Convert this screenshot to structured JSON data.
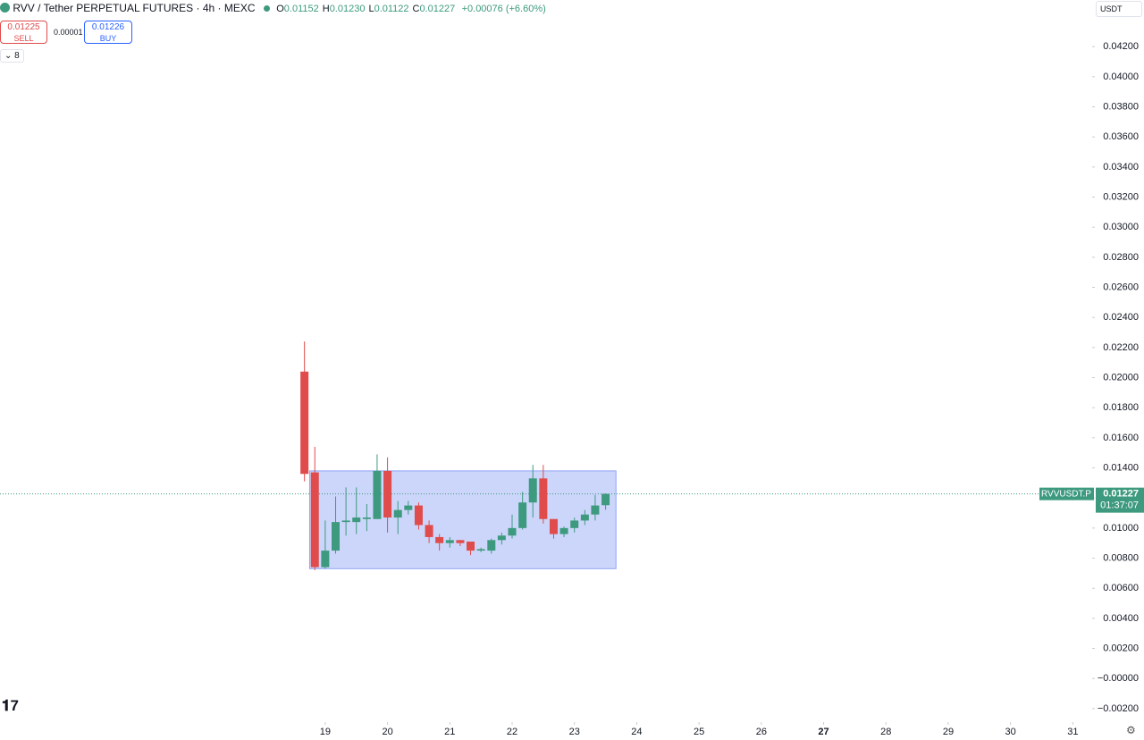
{
  "header": {
    "title": "RVV / Tether PERPETUAL FUTURES · 4h · MEXC",
    "ohlc": [
      {
        "label": "O",
        "value": "0.01152"
      },
      {
        "label": "H",
        "value": "0.01230"
      },
      {
        "label": "L",
        "value": "0.01122"
      },
      {
        "label": "C",
        "value": "0.01227"
      }
    ],
    "change": "+0.00076 (+6.60%)",
    "sell": {
      "price": "0.01225",
      "label": "SELL"
    },
    "spread": "0.00001",
    "buy": {
      "price": "0.01226",
      "label": "BUY"
    },
    "indicators": "8",
    "currency": "USDT"
  },
  "chart_data": {
    "type": "candlestick",
    "x": [
      18.667,
      18.833,
      19,
      19.167,
      19.333,
      19.5,
      19.667,
      19.833,
      20,
      20.167,
      20.333,
      20.5,
      20.667,
      20.833,
      21,
      21.167,
      21.333,
      21.5,
      21.667,
      21.833,
      22,
      22.167,
      22.333,
      22.5,
      22.667,
      22.833,
      23,
      23.167,
      23.333,
      23.5
    ],
    "open": [
      0.0204,
      0.0137,
      0.0074,
      0.0085,
      0.0104,
      0.0104,
      0.0106,
      0.0106,
      0.0138,
      0.0107,
      0.0112,
      0.0115,
      0.0102,
      0.0094,
      0.009,
      0.0092,
      0.0091,
      0.0085,
      0.0085,
      0.0092,
      0.0095,
      0.01,
      0.0117,
      0.0133,
      0.0106,
      0.0096,
      0.01,
      0.0105,
      0.0109,
      0.01152
    ],
    "high": [
      0.0224,
      0.0154,
      0.0105,
      0.0121,
      0.0127,
      0.0127,
      0.0116,
      0.0149,
      0.0147,
      0.0118,
      0.0118,
      0.0117,
      0.0105,
      0.0096,
      0.0094,
      0.0092,
      0.0091,
      0.0087,
      0.0093,
      0.0097,
      0.0109,
      0.0124,
      0.0142,
      0.0142,
      0.0106,
      0.0101,
      0.0107,
      0.0112,
      0.0122,
      0.0123
    ],
    "low": [
      0.0131,
      0.0072,
      0.0073,
      0.0083,
      0.0095,
      0.0096,
      0.0098,
      0.0106,
      0.0097,
      0.0096,
      0.0109,
      0.0099,
      0.009,
      0.0085,
      0.0087,
      0.0088,
      0.0082,
      0.0084,
      0.0083,
      0.0089,
      0.0093,
      0.0099,
      0.0107,
      0.0103,
      0.0093,
      0.0094,
      0.0097,
      0.0102,
      0.0105,
      0.01122
    ],
    "close": [
      0.0136,
      0.0074,
      0.0085,
      0.0104,
      0.0105,
      0.0107,
      0.0107,
      0.0138,
      0.0107,
      0.0112,
      0.0115,
      0.0102,
      0.0094,
      0.009,
      0.0092,
      0.009,
      0.0085,
      0.0086,
      0.0092,
      0.0095,
      0.01,
      0.0117,
      0.0133,
      0.0106,
      0.0096,
      0.01,
      0.0105,
      0.0109,
      0.0115,
      0.01227
    ],
    "up_color": "#3d9a7e",
    "down_color": "#e04b4b",
    "xlim": [
      13.78,
      31.31
    ],
    "xticks": [
      19,
      20,
      21,
      22,
      23,
      24,
      25,
      26,
      27,
      28,
      29,
      30,
      31
    ],
    "ylim": [
      -0.0029,
      0.0451
    ],
    "yticks": [
      {
        "value": 0.042,
        "label": "0.04200"
      },
      {
        "value": 0.04,
        "label": "0.04000"
      },
      {
        "value": 0.038,
        "label": "0.03800"
      },
      {
        "value": 0.036,
        "label": "0.03600"
      },
      {
        "value": 0.034,
        "label": "0.03400"
      },
      {
        "value": 0.032,
        "label": "0.03200"
      },
      {
        "value": 0.03,
        "label": "0.03000"
      },
      {
        "value": 0.028,
        "label": "0.02800"
      },
      {
        "value": 0.026,
        "label": "0.02600"
      },
      {
        "value": 0.024,
        "label": "0.02400"
      },
      {
        "value": 0.022,
        "label": "0.02200"
      },
      {
        "value": 0.02,
        "label": "0.02000"
      },
      {
        "value": 0.018,
        "label": "0.01800"
      },
      {
        "value": 0.016,
        "label": "0.01600"
      },
      {
        "value": 0.014,
        "label": "0.01400"
      },
      {
        "value": 0.012,
        "label": "0.01200"
      },
      {
        "value": 0.01,
        "label": "0.01000"
      },
      {
        "value": 0.008,
        "label": "0.00800"
      },
      {
        "value": 0.006,
        "label": "0.00600"
      },
      {
        "value": 0.004,
        "label": "0.00400"
      },
      {
        "value": 0.002,
        "label": "0.00200"
      },
      {
        "value": 0,
        "label": "−0.00000"
      },
      {
        "value": -0.002,
        "label": "−0.00200"
      }
    ],
    "last_price": {
      "symbol": "RVVUSDT.P",
      "value": 0.01227,
      "countdown": "01:37:07",
      "color": "#3d9a7e"
    },
    "range_box": {
      "x": [
        18.75,
        23.667
      ],
      "y": [
        0.0073,
        0.0138
      ],
      "color": "#8fa3f5"
    }
  }
}
